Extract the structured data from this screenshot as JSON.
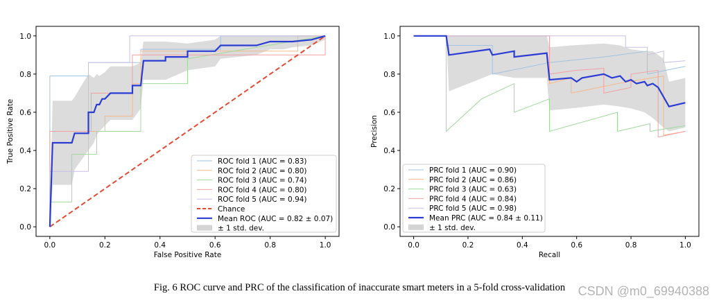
{
  "caption": "Fig. 6 ROC curve and PRC of the classification of inaccurate smart meters in a 5-fold cross-validation",
  "watermark": "CSDN @m0_69940388",
  "colors": {
    "fold1": "#9fc3e0",
    "fold2": "#f7b889",
    "fold3": "#9fd99a",
    "fold4": "#f2a0a0",
    "fold5": "#c8bde6",
    "mean": "#2a3bd3",
    "chance": "#e24a33",
    "band": "#c9c9c9"
  },
  "chart_data": [
    {
      "type": "line",
      "title": "",
      "xlabel": "False Positive Rate",
      "ylabel": "True Positive Rate",
      "xlim": [
        -0.05,
        1.05
      ],
      "ylim": [
        -0.05,
        1.05
      ],
      "xticks": [
        "0.0",
        "0.2",
        "0.4",
        "0.6",
        "0.8",
        "1.0"
      ],
      "yticks": [
        "0.0",
        "0.2",
        "0.4",
        "0.6",
        "0.8",
        "1.0"
      ],
      "legend_position": "lower-right",
      "series": [
        {
          "name": "ROC fold 1 (AUC = 0.83)",
          "color_key": "fold1",
          "style": "solid",
          "x": [
            0,
            0,
            0.14,
            0.14,
            0.33,
            0.33,
            0.62,
            0.62,
            1.0
          ],
          "y": [
            0,
            0.79,
            0.79,
            0.86,
            0.86,
            0.93,
            0.93,
            1.0,
            1.0
          ]
        },
        {
          "name": "ROC fold 2 (AUC = 0.80)",
          "color_key": "fold2",
          "style": "solid",
          "x": [
            0,
            0,
            0.2,
            0.2,
            0.3,
            0.3,
            0.33,
            0.33,
            0.9,
            0.9,
            1.0
          ],
          "y": [
            0,
            0.5,
            0.5,
            0.58,
            0.58,
            0.75,
            0.75,
            0.92,
            0.92,
            1.0,
            1.0
          ]
        },
        {
          "name": "ROC fold 3 (AUC = 0.74)",
          "color_key": "fold3",
          "style": "solid",
          "x": [
            0,
            0,
            0.08,
            0.08,
            0.17,
            0.17,
            0.33,
            0.33,
            0.5,
            0.5,
            1.0
          ],
          "y": [
            0,
            0.13,
            0.13,
            0.38,
            0.38,
            0.5,
            0.5,
            0.75,
            0.75,
            0.88,
            1.0
          ]
        },
        {
          "name": "ROC fold 4 (AUC = 0.80)",
          "color_key": "fold4",
          "style": "solid",
          "x": [
            0,
            0,
            0.15,
            0.15,
            0.3,
            0.3,
            0.5,
            0.5,
            1.0,
            1.0
          ],
          "y": [
            0,
            0.5,
            0.5,
            0.7,
            0.7,
            0.9,
            0.9,
            0.9,
            0.9,
            1.0
          ]
        },
        {
          "name": "ROC fold 5 (AUC = 0.94)",
          "color_key": "fold5",
          "style": "solid",
          "x": [
            0,
            0,
            0.14,
            0.14,
            0.29,
            0.29,
            1.0
          ],
          "y": [
            0,
            0.29,
            0.29,
            0.86,
            0.86,
            1.0,
            1.0
          ]
        },
        {
          "name": "Chance",
          "color_key": "chance",
          "style": "dashed",
          "x": [
            0,
            1
          ],
          "y": [
            0,
            1
          ]
        },
        {
          "name": "Mean ROC (AUC = 0.82 ± 0.07)",
          "color_key": "mean",
          "style": "solid-bold",
          "x": [
            0,
            0.01,
            0.01,
            0.08,
            0.09,
            0.14,
            0.14,
            0.16,
            0.17,
            0.18,
            0.19,
            0.2,
            0.22,
            0.3,
            0.3,
            0.33,
            0.34,
            0.42,
            0.42,
            0.5,
            0.5,
            0.6,
            0.62,
            0.75,
            0.8,
            0.85,
            0.88,
            0.95,
            1.0
          ],
          "y": [
            0,
            0.44,
            0.44,
            0.44,
            0.49,
            0.49,
            0.6,
            0.6,
            0.64,
            0.64,
            0.67,
            0.67,
            0.7,
            0.7,
            0.74,
            0.74,
            0.87,
            0.87,
            0.89,
            0.89,
            0.92,
            0.92,
            0.95,
            0.95,
            0.97,
            0.97,
            0.97,
            0.98,
            1.0
          ]
        },
        {
          "name": "± 1 std. dev.",
          "color_key": "band",
          "style": "band",
          "x": [
            0,
            0.01,
            0.08,
            0.09,
            0.14,
            0.16,
            0.17,
            0.18,
            0.2,
            0.22,
            0.3,
            0.33,
            0.34,
            0.42,
            0.5,
            0.6,
            0.62,
            0.75,
            0.8,
            0.85,
            0.88,
            0.95,
            1.0
          ],
          "lower": [
            0,
            0.22,
            0.22,
            0.3,
            0.4,
            0.44,
            0.48,
            0.5,
            0.53,
            0.56,
            0.56,
            0.62,
            0.77,
            0.77,
            0.82,
            0.84,
            0.88,
            0.9,
            0.93,
            0.93,
            0.94,
            0.95,
            0.98
          ],
          "upper": [
            0,
            0.66,
            0.66,
            0.68,
            0.8,
            0.78,
            0.8,
            0.79,
            0.81,
            0.84,
            0.84,
            0.86,
            0.97,
            0.97,
            0.96,
            0.98,
            1.0,
            1.0,
            1.0,
            1.0,
            1.0,
            1.0,
            1.0
          ]
        }
      ]
    },
    {
      "type": "line",
      "title": "",
      "xlabel": "Recall",
      "ylabel": "Precision",
      "xlim": [
        -0.05,
        1.05
      ],
      "ylim": [
        -0.05,
        1.05
      ],
      "xticks": [
        "0.0",
        "0.2",
        "0.4",
        "0.6",
        "0.8",
        "1.0"
      ],
      "yticks": [
        "0.0",
        "0.2",
        "0.4",
        "0.6",
        "0.8",
        "1.0"
      ],
      "legend_position": "lower-left",
      "series": [
        {
          "name": "PRC fold 1 (AUC = 0.90)",
          "color_key": "fold1",
          "style": "solid",
          "x": [
            0,
            0.12,
            0.12,
            0.29,
            0.29,
            0.5,
            0.7,
            0.86,
            0.86,
            1.0
          ],
          "y": [
            1,
            1,
            0.95,
            0.95,
            0.8,
            0.86,
            0.89,
            0.92,
            0.8,
            0.84
          ]
        },
        {
          "name": "PRC fold 2 (AUC = 0.86)",
          "color_key": "fold2",
          "style": "solid",
          "x": [
            0,
            0.25,
            0.5,
            0.5,
            0.58,
            0.58,
            0.75,
            0.92,
            0.92,
            1.0
          ],
          "y": [
            1,
            1,
            1,
            0.75,
            0.78,
            0.7,
            0.75,
            0.79,
            0.48,
            0.5
          ]
        },
        {
          "name": "PRC fold 3 (AUC = 0.63)",
          "color_key": "fold3",
          "style": "solid",
          "x": [
            0,
            0.12,
            0.12,
            0.25,
            0.37,
            0.37,
            0.5,
            0.5,
            0.75,
            0.75,
            0.87,
            0.87,
            1.0
          ],
          "y": [
            1,
            1,
            0.5,
            0.67,
            0.75,
            0.6,
            0.67,
            0.5,
            0.6,
            0.5,
            0.54,
            0.5,
            0.53
          ]
        },
        {
          "name": "PRC fold 4 (AUC = 0.84)",
          "color_key": "fold4",
          "style": "solid",
          "x": [
            0,
            0.4,
            0.5,
            0.5,
            0.6,
            0.7,
            0.7,
            0.8,
            0.8,
            0.9,
            0.9,
            1.0
          ],
          "y": [
            1,
            1,
            1,
            0.8,
            0.82,
            0.83,
            0.7,
            0.73,
            0.8,
            0.82,
            0.47,
            0.5
          ]
        },
        {
          "name": "PRC fold 5 (AUC = 0.98)",
          "color_key": "fold5",
          "style": "solid",
          "x": [
            0,
            0.78,
            0.78,
            0.86,
            0.86,
            0.92,
            0.92,
            1.0
          ],
          "y": [
            1,
            1,
            0.94,
            0.94,
            0.9,
            0.92,
            0.86,
            0.87
          ]
        },
        {
          "name": "Mean PRC (AUC = 0.84 ± 0.11)",
          "color_key": "mean",
          "style": "solid-bold",
          "x": [
            0,
            0.12,
            0.13,
            0.28,
            0.29,
            0.37,
            0.37,
            0.49,
            0.5,
            0.58,
            0.6,
            0.62,
            0.7,
            0.73,
            0.76,
            0.78,
            0.8,
            0.82,
            0.85,
            0.86,
            0.88,
            0.9,
            0.92,
            0.94,
            1.0
          ],
          "y": [
            1,
            1,
            0.9,
            0.93,
            0.9,
            0.92,
            0.89,
            0.91,
            0.77,
            0.78,
            0.76,
            0.78,
            0.8,
            0.78,
            0.79,
            0.76,
            0.77,
            0.75,
            0.76,
            0.74,
            0.75,
            0.73,
            0.68,
            0.63,
            0.65
          ]
        },
        {
          "name": "± 1 std. dev.",
          "color_key": "band",
          "style": "band",
          "x": [
            0,
            0.12,
            0.13,
            0.29,
            0.37,
            0.49,
            0.5,
            0.58,
            0.7,
            0.76,
            0.8,
            0.85,
            0.88,
            0.92,
            0.94,
            1.0
          ],
          "lower": [
            1,
            1,
            0.71,
            0.8,
            0.78,
            0.78,
            0.61,
            0.62,
            0.64,
            0.63,
            0.62,
            0.6,
            0.57,
            0.52,
            0.5,
            0.52
          ],
          "upper": [
            1,
            1,
            1,
            1,
            1,
            1,
            0.94,
            0.95,
            0.96,
            0.95,
            0.93,
            0.92,
            0.92,
            0.88,
            0.76,
            0.78
          ]
        }
      ]
    }
  ]
}
